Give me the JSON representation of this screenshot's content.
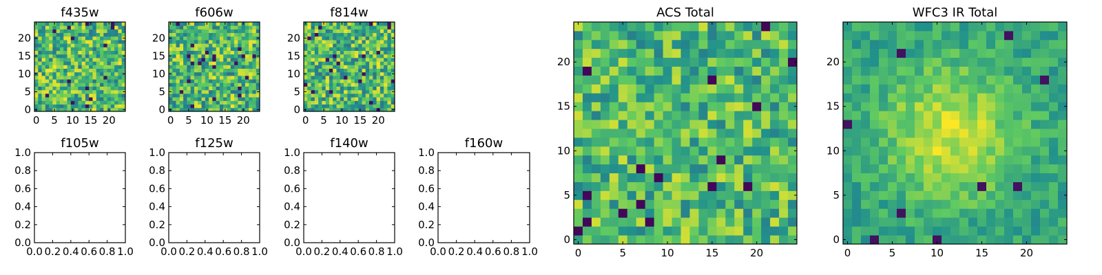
{
  "chart_data": [
    {
      "type": "heatmap",
      "title": "f435w",
      "colormap": "viridis",
      "xlim": [
        -0.5,
        24.5
      ],
      "ylim": [
        -0.5,
        24.5
      ],
      "xticks": [
        0,
        5,
        10,
        15,
        20
      ],
      "yticks": [
        0,
        5,
        10,
        15,
        20
      ],
      "grid_size": 25,
      "value_range": [
        0,
        1
      ],
      "pattern": "noise-fine"
    },
    {
      "type": "heatmap",
      "title": "f606w",
      "colormap": "viridis",
      "xlim": [
        -0.5,
        24.5
      ],
      "ylim": [
        -0.5,
        24.5
      ],
      "xticks": [
        0,
        5,
        10,
        15,
        20
      ],
      "yticks": [
        0,
        5,
        10,
        15,
        20
      ],
      "grid_size": 25,
      "value_range": [
        0,
        1
      ],
      "pattern": "noise-fine"
    },
    {
      "type": "heatmap",
      "title": "f814w",
      "colormap": "viridis",
      "xlim": [
        -0.5,
        24.5
      ],
      "ylim": [
        -0.5,
        24.5
      ],
      "xticks": [
        0,
        5,
        10,
        15,
        20
      ],
      "yticks": [
        0,
        5,
        10,
        15,
        20
      ],
      "grid_size": 25,
      "value_range": [
        0,
        1
      ],
      "pattern": "noise-fine"
    },
    {
      "type": "empty",
      "title": "f105w",
      "xlim": [
        0,
        1
      ],
      "ylim": [
        0,
        1
      ],
      "xticks": [
        "0.0",
        "0.2",
        "0.4",
        "0.6",
        "0.8",
        "1.0"
      ],
      "yticks": [
        "0.0",
        "0.2",
        "0.4",
        "0.6",
        "0.8",
        "1.0"
      ]
    },
    {
      "type": "empty",
      "title": "f125w",
      "xlim": [
        0,
        1
      ],
      "ylim": [
        0,
        1
      ],
      "xticks": [
        "0.0",
        "0.2",
        "0.4",
        "0.6",
        "0.8",
        "1.0"
      ],
      "yticks": [
        "0.0",
        "0.2",
        "0.4",
        "0.6",
        "0.8",
        "1.0"
      ]
    },
    {
      "type": "empty",
      "title": "f140w",
      "xlim": [
        0,
        1
      ],
      "ylim": [
        0,
        1
      ],
      "xticks": [
        "0.0",
        "0.2",
        "0.4",
        "0.6",
        "0.8",
        "1.0"
      ],
      "yticks": [
        "0.0",
        "0.2",
        "0.4",
        "0.6",
        "0.8",
        "1.0"
      ]
    },
    {
      "type": "empty",
      "title": "f160w",
      "xlim": [
        0,
        1
      ],
      "ylim": [
        0,
        1
      ],
      "xticks": [
        "0.0",
        "0.2",
        "0.4",
        "0.6",
        "0.8",
        "1.0"
      ],
      "yticks": [
        "0.0",
        "0.2",
        "0.4",
        "0.6",
        "0.8",
        "1.0"
      ]
    },
    {
      "type": "heatmap",
      "title": "ACS Total",
      "colormap": "viridis",
      "xlim": [
        -0.5,
        24.5
      ],
      "ylim": [
        -0.5,
        24.5
      ],
      "xticks": [
        0,
        5,
        10,
        15,
        20
      ],
      "yticks": [
        0,
        5,
        10,
        15,
        20
      ],
      "grid_size": 25,
      "value_range": [
        0,
        1
      ],
      "pattern": "noise-medium"
    },
    {
      "type": "heatmap",
      "title": "WFC3 IR Total",
      "colormap": "viridis",
      "xlim": [
        -0.5,
        24.5
      ],
      "ylim": [
        -0.5,
        24.5
      ],
      "xticks": [
        0,
        5,
        10,
        15,
        20
      ],
      "yticks": [
        0,
        5,
        10,
        15,
        20
      ],
      "grid_size": 25,
      "value_range": [
        0,
        1
      ],
      "pattern": "smooth-central-bright"
    }
  ],
  "colors": {
    "viridis": [
      "#440154",
      "#3b528b",
      "#21918c",
      "#5ec962",
      "#fde725"
    ]
  }
}
